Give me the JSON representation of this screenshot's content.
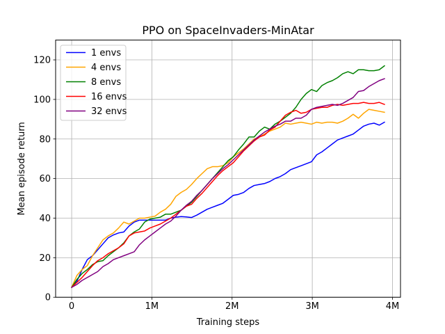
{
  "chart_data": {
    "type": "line",
    "title": "PPO on SpaceInvaders-MinAtar",
    "xlabel": "Training steps",
    "ylabel": "Mean episode return",
    "xlim": [
      -200000,
      4100000
    ],
    "ylim": [
      0,
      130
    ],
    "xticks": [
      {
        "value": 0,
        "label": "0"
      },
      {
        "value": 1000000,
        "label": "1M"
      },
      {
        "value": 2000000,
        "label": "2M"
      },
      {
        "value": 3000000,
        "label": "3M"
      },
      {
        "value": 4000000,
        "label": "4M"
      }
    ],
    "yticks": [
      {
        "value": 0,
        "label": "0"
      },
      {
        "value": 20,
        "label": "20"
      },
      {
        "value": 40,
        "label": "40"
      },
      {
        "value": 60,
        "label": "60"
      },
      {
        "value": 80,
        "label": "80"
      },
      {
        "value": 100,
        "label": "100"
      },
      {
        "value": 120,
        "label": "120"
      }
    ],
    "grid": true,
    "legend_position": "top-left",
    "x": [
      0,
      65000,
      130000,
      195000,
      260000,
      325000,
      390000,
      455000,
      520000,
      585000,
      650000,
      715000,
      780000,
      845000,
      910000,
      975000,
      1040000,
      1105000,
      1170000,
      1235000,
      1300000,
      1365000,
      1430000,
      1495000,
      1560000,
      1625000,
      1690000,
      1755000,
      1820000,
      1885000,
      1950000,
      2015000,
      2080000,
      2145000,
      2210000,
      2275000,
      2340000,
      2405000,
      2470000,
      2535000,
      2600000,
      2665000,
      2730000,
      2795000,
      2860000,
      2925000,
      2990000,
      3055000,
      3120000,
      3185000,
      3250000,
      3315000,
      3380000,
      3445000,
      3510000,
      3575000,
      3640000,
      3705000,
      3770000,
      3835000,
      3900000
    ],
    "series": [
      {
        "name": "1 envs",
        "color": "#0000ff",
        "values": [
          5,
          8,
          14,
          19,
          21,
          24,
          27,
          30,
          31.5,
          32.5,
          33,
          36,
          38,
          39,
          39,
          39,
          39,
          39,
          39,
          40,
          40.5,
          40.8,
          40.6,
          40.3,
          41.5,
          43,
          44.5,
          45.5,
          46.5,
          47.5,
          49.5,
          51.5,
          52,
          53,
          55,
          56.5,
          57,
          57.5,
          58.5,
          60,
          61,
          62.5,
          64.5,
          65.5,
          66.5,
          67.5,
          68.5,
          72,
          73.5,
          75.5,
          77.5,
          79.5,
          80.5,
          81.5,
          82.5,
          84.5,
          86.5,
          87.5,
          88,
          87,
          88.5
        ]
      },
      {
        "name": "4 envs",
        "color": "#ffa500",
        "values": [
          5,
          11,
          14,
          16,
          21,
          25,
          29,
          31,
          32.5,
          35,
          38,
          37,
          38.5,
          40,
          40,
          40.5,
          41,
          43,
          44.5,
          47,
          51,
          53,
          54.5,
          57,
          60,
          62.5,
          65,
          66,
          66,
          66.5,
          68,
          71,
          73,
          75,
          77.5,
          80,
          81,
          82.5,
          84,
          85,
          86,
          88,
          87.5,
          88,
          88.5,
          88,
          87.5,
          88.5,
          88,
          88.5,
          88.5,
          88,
          89,
          90.5,
          92.5,
          90.5,
          93,
          95,
          94.5,
          94,
          93.5
        ]
      },
      {
        "name": "8 envs",
        "color": "#008000",
        "values": [
          5,
          9,
          12,
          14,
          16.5,
          18,
          18.5,
          21,
          23,
          25,
          27.5,
          31,
          33,
          34.5,
          38,
          39.5,
          40,
          40.5,
          42,
          42,
          43,
          44,
          46,
          48,
          51,
          54,
          57,
          60,
          63,
          66,
          69,
          71,
          74.5,
          77.5,
          81,
          81,
          84,
          86,
          85,
          87.5,
          89,
          91,
          93,
          96,
          100,
          103,
          105,
          104,
          107,
          108.5,
          109.5,
          111,
          113,
          114,
          113,
          115,
          115,
          114.5,
          114.5,
          115,
          117
        ]
      },
      {
        "name": "16 envs",
        "color": "#ff0000",
        "values": [
          5,
          7.5,
          10,
          13,
          16,
          18.5,
          20,
          22,
          23.5,
          25,
          27,
          31,
          32.5,
          33,
          33.5,
          35,
          36,
          37,
          38.5,
          40,
          42,
          44,
          46,
          47,
          50,
          52.5,
          55.5,
          58.5,
          61.5,
          64,
          66,
          68,
          71,
          74,
          76.5,
          79,
          81,
          82,
          84.5,
          86,
          89,
          92,
          93.5,
          94.5,
          93,
          93.5,
          95,
          95.5,
          96,
          96,
          97,
          97.5,
          97,
          97.5,
          98,
          98,
          98.5,
          98,
          98,
          98.5,
          97.5
        ]
      },
      {
        "name": "32 envs",
        "color": "#800080",
        "values": [
          5,
          6.5,
          8.5,
          10,
          11.5,
          13,
          15.5,
          17,
          19,
          20,
          21,
          22,
          23,
          26.5,
          29,
          31,
          33,
          35,
          37,
          38.5,
          41,
          44,
          46.5,
          48.5,
          51.5,
          54,
          57,
          60,
          62.5,
          65,
          67,
          69.5,
          72,
          74.5,
          77,
          79.5,
          81.5,
          83.5,
          85,
          86.5,
          87.5,
          89,
          89,
          90.5,
          90.5,
          92,
          95,
          96,
          96.5,
          97,
          97.5,
          97,
          98,
          99.5,
          101,
          104,
          104.5,
          106.5,
          108,
          109.5,
          110.5
        ]
      }
    ]
  }
}
